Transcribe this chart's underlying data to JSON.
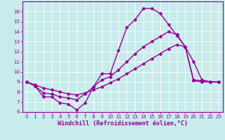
{
  "xlabel": "Windchill (Refroidissement éolien,°C)",
  "bg_color": "#c8ecec",
  "line_color": "#990099",
  "grid_color": "#ffffff",
  "xlim": [
    -0.5,
    23.5
  ],
  "ylim": [
    6,
    17
  ],
  "xticks": [
    0,
    1,
    2,
    3,
    4,
    5,
    6,
    7,
    8,
    9,
    10,
    11,
    12,
    13,
    14,
    15,
    16,
    17,
    18,
    19,
    20,
    21,
    22,
    23
  ],
  "yticks": [
    6,
    7,
    8,
    9,
    10,
    11,
    12,
    13,
    14,
    15,
    16
  ],
  "series1_x": [
    0,
    1,
    2,
    3,
    4,
    5,
    6,
    7,
    8,
    9,
    10,
    11,
    12,
    13,
    14,
    15,
    16,
    17,
    18,
    19,
    20,
    21,
    22,
    23
  ],
  "series1_y": [
    9.0,
    8.6,
    7.5,
    7.5,
    6.9,
    6.8,
    6.2,
    6.9,
    8.5,
    9.8,
    9.8,
    12.1,
    14.4,
    15.2,
    16.3,
    16.3,
    15.8,
    14.7,
    13.6,
    12.5,
    11.0,
    9.2,
    9.0,
    9.0
  ],
  "series2_x": [
    0,
    1,
    2,
    3,
    4,
    5,
    6,
    7,
    8,
    9,
    10,
    11,
    12,
    13,
    14,
    15,
    16,
    17,
    18,
    19,
    20,
    21,
    22,
    23
  ],
  "series2_y": [
    9.0,
    8.6,
    7.9,
    7.8,
    7.5,
    7.4,
    7.2,
    7.8,
    8.5,
    9.2,
    9.5,
    10.2,
    11.0,
    11.8,
    12.5,
    13.0,
    13.5,
    14.0,
    13.7,
    12.5,
    9.1,
    9.0,
    9.0,
    9.0
  ],
  "series3_x": [
    0,
    1,
    2,
    3,
    4,
    5,
    6,
    7,
    8,
    9,
    10,
    11,
    12,
    13,
    14,
    15,
    16,
    17,
    18,
    19,
    20,
    21,
    22,
    23
  ],
  "series3_y": [
    9.0,
    8.7,
    8.4,
    8.2,
    8.0,
    7.8,
    7.7,
    7.9,
    8.2,
    8.5,
    8.9,
    9.3,
    9.8,
    10.3,
    10.8,
    11.3,
    11.8,
    12.3,
    12.7,
    12.5,
    9.2,
    9.1,
    9.0,
    9.0
  ],
  "marker": "D",
  "marker_size": 2.5,
  "linewidth": 1.0,
  "tick_fontsize": 5.0,
  "xlabel_fontsize": 6.0
}
